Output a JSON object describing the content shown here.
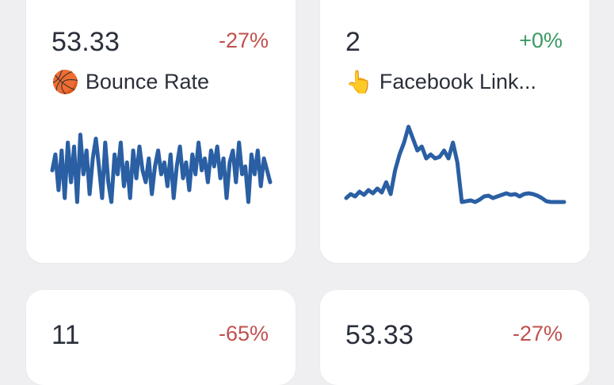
{
  "cards": [
    {
      "value": "53.33",
      "change": "-27%",
      "change_dir": "neg",
      "label": "Bounce Rate",
      "icon": "basketball-icon",
      "icon_glyph": "🏀",
      "sparkline": [
        0.55,
        0.35,
        0.8,
        0.3,
        0.9,
        0.2,
        0.7,
        0.25,
        0.95,
        0.1,
        0.6,
        0.3,
        0.85,
        0.4,
        0.15,
        0.5,
        0.9,
        0.2,
        0.7,
        0.95,
        0.35,
        0.6,
        0.2,
        0.75,
        0.45,
        0.9,
        0.3,
        0.65,
        0.25,
        0.55,
        0.7,
        0.4,
        0.85,
        0.5,
        0.3,
        0.6,
        0.45,
        0.75,
        0.35,
        0.9,
        0.5,
        0.25,
        0.65,
        0.45,
        0.8,
        0.35,
        0.6,
        0.2,
        0.55,
        0.4,
        0.7,
        0.3,
        0.5,
        0.25,
        0.65,
        0.4,
        0.9,
        0.45,
        0.3,
        0.7,
        0.2,
        0.6,
        0.5,
        0.95,
        0.35,
        0.6,
        0.3,
        0.75,
        0.4,
        0.55,
        0.7
      ]
    },
    {
      "value": "2",
      "change": "+0%",
      "change_dir": "pos",
      "label": "Facebook Link...",
      "icon": "pointing-hand-icon",
      "icon_glyph": "👆",
      "sparkline": [
        0.9,
        0.85,
        0.88,
        0.82,
        0.86,
        0.8,
        0.84,
        0.78,
        0.83,
        0.7,
        0.85,
        0.55,
        0.35,
        0.2,
        0.0,
        0.15,
        0.3,
        0.25,
        0.4,
        0.35,
        0.4,
        0.38,
        0.3,
        0.4,
        0.2,
        0.45,
        0.95,
        0.94,
        0.93,
        0.95,
        0.92,
        0.88,
        0.87,
        0.9,
        0.88,
        0.86,
        0.84,
        0.86,
        0.85,
        0.88,
        0.85,
        0.84,
        0.85,
        0.87,
        0.9,
        0.94,
        0.95,
        0.95,
        0.95,
        0.95
      ]
    },
    {
      "value": "11",
      "change": "-65%",
      "change_dir": "neg"
    },
    {
      "value": "53.33",
      "change": "-27%",
      "change_dir": "neg"
    }
  ]
}
